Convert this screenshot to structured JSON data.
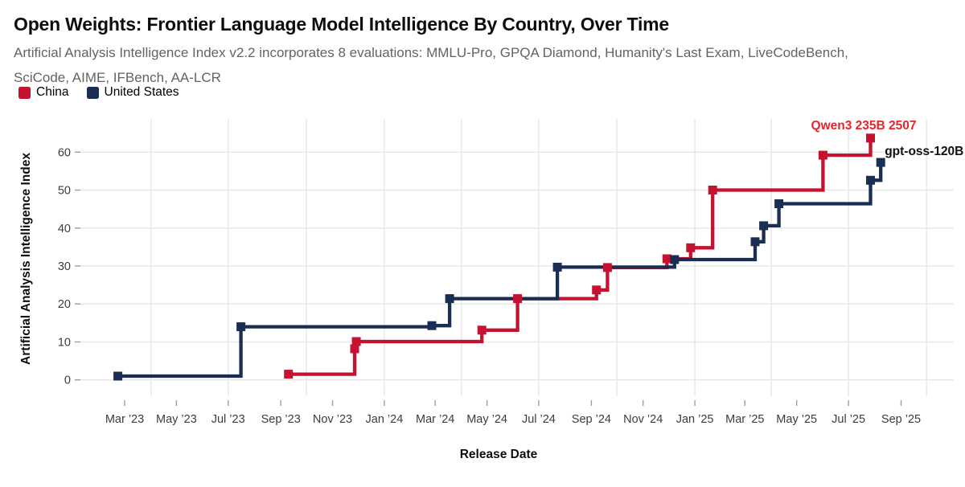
{
  "header": {
    "title": "Open Weights: Frontier Language Model Intelligence By Country, Over Time",
    "subtitle": "Artificial Analysis Intelligence Index v2.2 incorporates 8 evaluations: MMLU-Pro, GPQA Diamond, Humanity's Last Exam, LiveCodeBench, SciCode, AIME, IFBench, AA-LCR"
  },
  "legend": [
    {
      "label": "China",
      "color": "#c41230"
    },
    {
      "label": "United States",
      "color": "#1a2d52"
    }
  ],
  "chart_data": {
    "type": "line",
    "line_style": "step-after",
    "xlabel": "Release Date",
    "ylabel": "Artificial Analysis Intelligence Index",
    "x_axis": {
      "start": "2023-03-01",
      "end": "2025-09-01"
    },
    "x_ticks": [
      {
        "label": "Mar ’23",
        "date": "2023-03-01"
      },
      {
        "label": "May ’23",
        "date": "2023-05-01"
      },
      {
        "label": "Jul ’23",
        "date": "2023-07-01"
      },
      {
        "label": "Sep ’23",
        "date": "2023-09-01"
      },
      {
        "label": "Nov ’23",
        "date": "2023-11-01"
      },
      {
        "label": "Jan ’24",
        "date": "2024-01-01"
      },
      {
        "label": "Mar ’24",
        "date": "2024-03-01"
      },
      {
        "label": "May ’24",
        "date": "2024-05-01"
      },
      {
        "label": "Jul ’24",
        "date": "2024-07-01"
      },
      {
        "label": "Sep ’24",
        "date": "2024-09-01"
      },
      {
        "label": "Nov ’24",
        "date": "2024-11-01"
      },
      {
        "label": "Jan ’25",
        "date": "2025-01-01"
      },
      {
        "label": "Mar ’25",
        "date": "2025-03-01"
      },
      {
        "label": "May ’25",
        "date": "2025-05-01"
      },
      {
        "label": "Jul ’25",
        "date": "2025-07-01"
      },
      {
        "label": "Sep ’25",
        "date": "2025-09-01"
      }
    ],
    "ylim": [
      0,
      65
    ],
    "y_ticks": [
      0,
      10,
      20,
      30,
      40,
      50,
      60
    ],
    "grid": {
      "horizontal_every": 10,
      "vertical": "quarterly"
    },
    "series": [
      {
        "name": "China",
        "color": "#c41230",
        "points": [
          [
            "2023-09-10",
            1.5
          ],
          [
            "2023-11-27",
            8.2
          ],
          [
            "2023-11-29",
            10.1
          ],
          [
            "2024-04-25",
            13.1
          ],
          [
            "2024-06-06",
            21.4
          ],
          [
            "2024-09-07",
            23.7
          ],
          [
            "2024-09-20",
            29.6
          ],
          [
            "2024-11-29",
            31.9
          ],
          [
            "2024-12-27",
            34.8
          ],
          [
            "2025-01-22",
            50.0
          ],
          [
            "2025-06-01",
            59.2
          ],
          [
            "2025-07-27",
            63.7
          ]
        ]
      },
      {
        "name": "United States",
        "color": "#1a2d52",
        "points": [
          [
            "2023-02-21",
            1.0
          ],
          [
            "2023-07-16",
            14.0
          ],
          [
            "2024-02-26",
            14.3
          ],
          [
            "2024-03-18",
            21.4
          ],
          [
            "2024-07-23",
            29.7
          ],
          [
            "2024-12-08",
            31.7
          ],
          [
            "2025-03-13",
            36.4
          ],
          [
            "2025-03-23",
            40.6
          ],
          [
            "2025-04-10",
            46.4
          ],
          [
            "2025-07-27",
            52.6
          ],
          [
            "2025-08-08",
            57.3
          ]
        ]
      }
    ],
    "annotations": [
      {
        "text": "Qwen3 235B 2507",
        "color": "#e4262c",
        "series": 0
      },
      {
        "text": "gpt-oss-120B",
        "color": "#111111",
        "series": 1
      }
    ]
  }
}
